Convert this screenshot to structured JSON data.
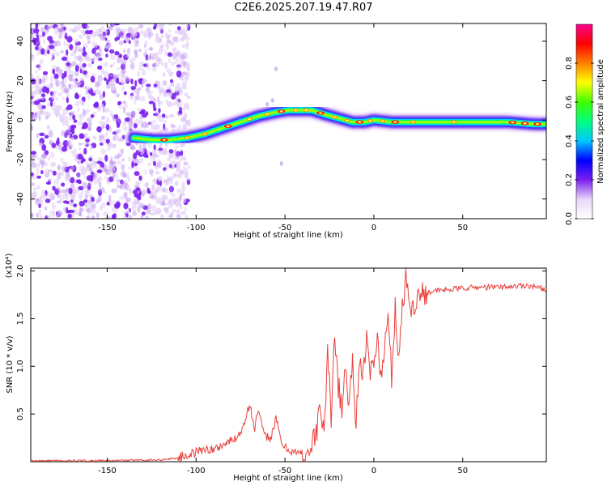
{
  "title": "C2E6.2025.207.19.47.R07",
  "colors": {
    "snr_line": "#e8403a",
    "frame": "#000000"
  },
  "chart_data": [
    {
      "type": "heatmap",
      "xlabel": "Height of straight line (km)",
      "ylabel": "Frequency (Hz)",
      "xlim": [
        -193,
        97
      ],
      "ylim": [
        -50,
        49
      ],
      "xticks": [
        -150,
        -100,
        -50,
        0,
        50
      ],
      "yticks": [
        -40,
        -20,
        0,
        20,
        40
      ],
      "colorbar": {
        "label": "Normalized spectral amplitude",
        "range": [
          0.0,
          1.0
        ],
        "ticks": [
          "0.0",
          "0.2",
          "0.4",
          "0.6",
          "0.8"
        ],
        "colors": [
          "#ffffff",
          "#e8d6f8",
          "#7a1ff0",
          "#0000ff",
          "#00c8ff",
          "#00ff80",
          "#40ff00",
          "#ffff00",
          "#ff8000",
          "#ff0000",
          "#ff0090"
        ]
      },
      "ridge": {
        "x": [
          -135,
          -125,
          -115,
          -105,
          -95,
          -85,
          -75,
          -65,
          -55,
          -48,
          -42,
          -35,
          -28,
          -20,
          -12,
          -5,
          0,
          10,
          20,
          30,
          45,
          60,
          75,
          90,
          97
        ],
        "y": [
          -9,
          -10,
          -10,
          -9,
          -7,
          -4,
          -1,
          2,
          4,
          5,
          5,
          5,
          3,
          1,
          -1,
          -1,
          0,
          -1,
          -1,
          -1,
          -1,
          -1,
          -1,
          -2,
          -2
        ]
      },
      "noise_region_x": [
        -193,
        -112
      ]
    },
    {
      "type": "line",
      "xlabel": "Height of straight line (km)",
      "ylabel": "SNR (10 * v/v)",
      "yscale_note": "(x10⁴)",
      "xlim": [
        -193,
        97
      ],
      "ylim": [
        0,
        2.03
      ],
      "xticks": [
        -150,
        -100,
        -50,
        0,
        50
      ],
      "yticks": [
        0.5,
        1.0,
        1.5,
        2.0
      ],
      "ytick_labels": [
        "0.5",
        "1.0",
        "1.5",
        "2.0"
      ],
      "series": [
        {
          "x": [
            -193,
            -150,
            -120,
            -110,
            -100,
            -95,
            -90,
            -85,
            -80,
            -75,
            -70,
            -67,
            -65,
            -62,
            -58,
            -55,
            -52,
            -50,
            -45,
            -40,
            -35,
            -32,
            -30,
            -28,
            -26,
            -24,
            -22,
            -20,
            -18,
            -16,
            -14,
            -12,
            -10,
            -8,
            -6,
            -4,
            -2,
            0,
            2,
            4,
            6,
            8,
            10,
            12,
            14,
            16,
            17,
            18,
            20,
            22,
            24,
            26,
            30,
            40,
            50,
            60,
            70,
            80,
            85,
            90,
            93,
            97
          ],
          "y": [
            0.01,
            0.01,
            0.02,
            0.04,
            0.1,
            0.14,
            0.12,
            0.18,
            0.22,
            0.3,
            0.6,
            0.35,
            0.55,
            0.28,
            0.25,
            0.45,
            0.2,
            0.15,
            0.1,
            0.08,
            0.15,
            0.35,
            0.6,
            0.25,
            1.2,
            0.4,
            1.4,
            0.8,
            0.55,
            1.0,
            0.6,
            1.05,
            0.4,
            1.15,
            0.9,
            1.25,
            0.9,
            1.1,
            1.3,
            0.85,
            1.2,
            1.5,
            0.9,
            1.6,
            1.1,
            1.7,
            1.55,
            2.02,
            1.6,
            1.65,
            1.7,
            1.75,
            1.78,
            1.8,
            1.82,
            1.83,
            1.83,
            1.84,
            1.85,
            1.84,
            1.82,
            1.81
          ]
        }
      ]
    }
  ]
}
